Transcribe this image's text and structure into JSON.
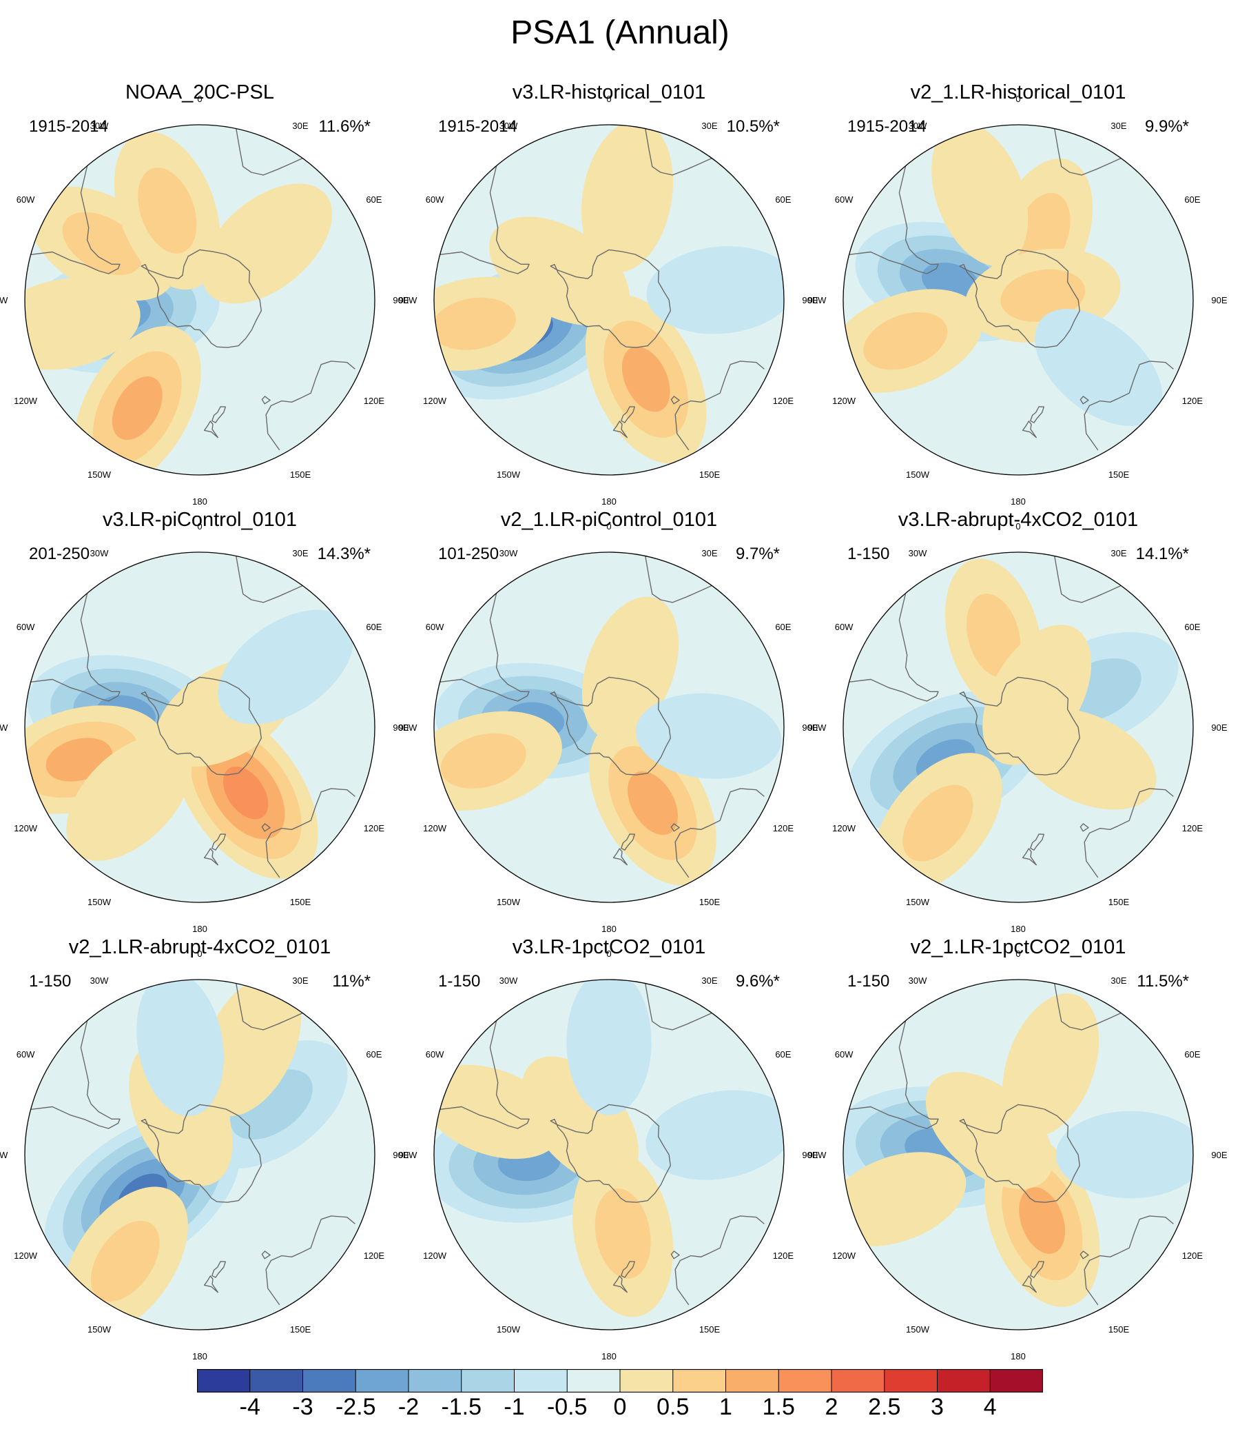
{
  "title": "PSA1 (Annual)",
  "chart_data": {
    "type": "polar-contour-map",
    "projection": "south polar stereographic",
    "variable": "sea level pressure EOF pattern (PSA1)",
    "lon_labels": [
      "0",
      "30E",
      "60E",
      "90E",
      "120E",
      "150E",
      "180",
      "150W",
      "120W",
      "90W",
      "60W",
      "30W"
    ],
    "panels": [
      {
        "title": "NOAA_20C-PSL",
        "period": "1915-2014",
        "variance_explained": "11.6%*",
        "features": [
          {
            "type": "low",
            "lon": -100,
            "lat": -58,
            "value": -1.7
          },
          {
            "type": "high",
            "lon": -150,
            "lat": -40,
            "value": 1.2
          },
          {
            "type": "high",
            "lon": -60,
            "lat": -45,
            "value": 0.7
          },
          {
            "type": "high",
            "lon": -20,
            "lat": -52,
            "value": 0.8
          },
          {
            "type": "high",
            "lon": 50,
            "lat": -55,
            "value": 0.5
          },
          {
            "type": "high",
            "lon": -100,
            "lat": -35,
            "value": 0.5
          }
        ]
      },
      {
        "title": "v3.LR-historical_0101",
        "period": "1915-2014",
        "variance_explained": "10.5%*",
        "features": [
          {
            "type": "low",
            "lon": -110,
            "lat": -55,
            "value": -2.2
          },
          {
            "type": "high",
            "lon": 155,
            "lat": -55,
            "value": 1.2
          },
          {
            "type": "high",
            "lon": -60,
            "lat": -67,
            "value": 0.5
          },
          {
            "type": "high",
            "lon": -100,
            "lat": -35,
            "value": 0.6
          },
          {
            "type": "high",
            "lon": 10,
            "lat": -48,
            "value": 0.5
          },
          {
            "type": "low",
            "lon": 85,
            "lat": -45,
            "value": -0.4
          }
        ]
      },
      {
        "title": "v2_1.LR-historical_0101",
        "period": "1915-2014",
        "variance_explained": "9.9%*",
        "features": [
          {
            "type": "low",
            "lon": -75,
            "lat": -62,
            "value": -1.6
          },
          {
            "type": "high",
            "lon": -110,
            "lat": -42,
            "value": 0.7
          },
          {
            "type": "high",
            "lon": 20,
            "lat": -62,
            "value": 0.6
          },
          {
            "type": "high",
            "lon": 80,
            "lat": -80,
            "value": 0.6
          },
          {
            "type": "high",
            "lon": -20,
            "lat": -45,
            "value": 0.4
          },
          {
            "type": "low",
            "lon": 130,
            "lat": -48,
            "value": -0.4
          }
        ]
      },
      {
        "title": "v3.LR-piControl_0101",
        "period": "201-250",
        "variance_explained": "14.3%*",
        "features": [
          {
            "type": "low",
            "lon": -80,
            "lat": -60,
            "value": -1.7
          },
          {
            "type": "high",
            "lon": 145,
            "lat": -58,
            "value": 1.6
          },
          {
            "type": "high",
            "lon": -105,
            "lat": -40,
            "value": 1.1
          },
          {
            "type": "high",
            "lon": 60,
            "lat": -78,
            "value": 0.5
          },
          {
            "type": "low",
            "lon": 55,
            "lat": -48,
            "value": -0.5
          },
          {
            "type": "high",
            "lon": -135,
            "lat": -50,
            "value": 0.5
          }
        ]
      },
      {
        "title": "v2_1.LR-piControl_0101",
        "period": "101-250",
        "variance_explained": "9.7%*",
        "features": [
          {
            "type": "low",
            "lon": -85,
            "lat": -60,
            "value": -1.7
          },
          {
            "type": "high",
            "lon": 150,
            "lat": -55,
            "value": 1.2
          },
          {
            "type": "high",
            "lon": -105,
            "lat": -38,
            "value": 0.7
          },
          {
            "type": "high",
            "lon": 20,
            "lat": -65,
            "value": 0.4
          },
          {
            "type": "low",
            "lon": 95,
            "lat": -50,
            "value": -0.3
          }
        ]
      },
      {
        "title": "v3.LR-abrupt-4xCO2_0101",
        "period": "1-150",
        "variance_explained": "14.1%*",
        "features": [
          {
            "type": "low",
            "lon": -115,
            "lat": -58,
            "value": -2.0
          },
          {
            "type": "low",
            "lon": 65,
            "lat": -55,
            "value": -1.0
          },
          {
            "type": "high",
            "lon": -140,
            "lat": -40,
            "value": 0.8
          },
          {
            "type": "high",
            "lon": -15,
            "lat": -52,
            "value": 0.6
          },
          {
            "type": "high",
            "lon": 30,
            "lat": -75,
            "value": 0.5
          },
          {
            "type": "high",
            "lon": 115,
            "lat": -60,
            "value": 0.4
          }
        ]
      },
      {
        "title": "v2_1.LR-abrupt-4xCO2_0101",
        "period": "1-150",
        "variance_explained": "11%*",
        "features": [
          {
            "type": "low",
            "lon": -125,
            "lat": -62,
            "value": -2.3
          },
          {
            "type": "low",
            "lon": 55,
            "lat": -55,
            "value": -1.0
          },
          {
            "type": "high",
            "lon": -145,
            "lat": -38,
            "value": 0.9
          },
          {
            "type": "high",
            "lon": -25,
            "lat": -72,
            "value": 0.5
          },
          {
            "type": "high",
            "lon": 25,
            "lat": -42,
            "value": 0.4
          },
          {
            "type": "low",
            "lon": -10,
            "lat": -45,
            "value": -0.3
          }
        ]
      },
      {
        "title": "v3.LR-1pctCO2_0101",
        "period": "1-150",
        "variance_explained": "9.6%*",
        "features": [
          {
            "type": "low",
            "lon": -95,
            "lat": -58,
            "value": -2.0
          },
          {
            "type": "high",
            "lon": 170,
            "lat": -58,
            "value": 0.9
          },
          {
            "type": "high",
            "lon": -40,
            "lat": -72,
            "value": 0.4
          },
          {
            "type": "high",
            "lon": -70,
            "lat": -40,
            "value": 0.3
          },
          {
            "type": "low",
            "lon": 80,
            "lat": -45,
            "value": -0.4
          },
          {
            "type": "low",
            "lon": 0,
            "lat": -45,
            "value": -0.3
          }
        ]
      },
      {
        "title": "v2_1.LR-1pctCO2_0101",
        "period": "1-150",
        "variance_explained": "11.5%*",
        "features": [
          {
            "type": "low",
            "lon": -85,
            "lat": -57,
            "value": -2.0
          },
          {
            "type": "high",
            "lon": 160,
            "lat": -62,
            "value": 1.2
          },
          {
            "type": "high",
            "lon": 20,
            "lat": -52,
            "value": 0.4
          },
          {
            "type": "high",
            "lon": -50,
            "lat": -75,
            "value": 0.4
          },
          {
            "type": "low",
            "lon": 90,
            "lat": -45,
            "value": -0.4
          },
          {
            "type": "high",
            "lon": -110,
            "lat": -38,
            "value": 0.3
          }
        ]
      }
    ],
    "colorbar": {
      "labels": [
        "-4",
        "-3",
        "-2.5",
        "-2",
        "-1.5",
        "-1",
        "-0.5",
        "0",
        "0.5",
        "1",
        "1.5",
        "2",
        "2.5",
        "3",
        "4"
      ],
      "levels": [
        -4,
        -3,
        -2.5,
        -2,
        -1.5,
        -1,
        -0.5,
        0,
        0.5,
        1,
        1.5,
        2,
        2.5,
        3,
        4
      ],
      "colors": [
        "#2b3c9b",
        "#3a5aa8",
        "#4b7bbd",
        "#6ea5d2",
        "#8ec0dd",
        "#a9d5e7",
        "#c6e6f1",
        "#e0f1f1",
        "#f6e3a8",
        "#fbd08a",
        "#f9ae6a",
        "#f8925a",
        "#f06a48",
        "#de3d30",
        "#c52128",
        "#a50f2a"
      ]
    }
  }
}
